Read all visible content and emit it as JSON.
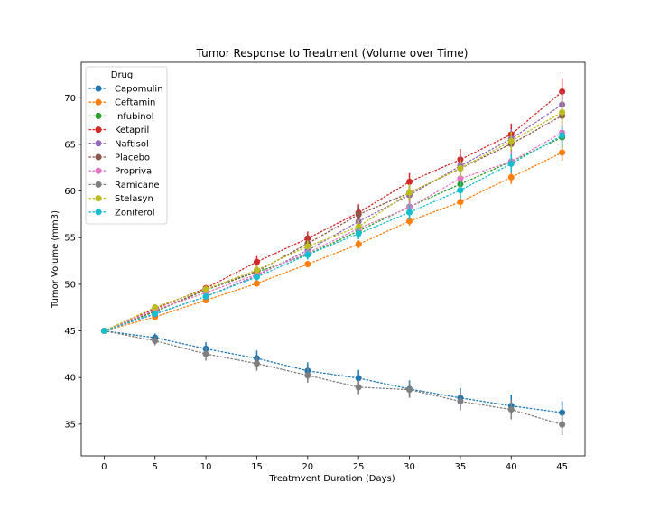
{
  "chart_data": {
    "type": "line",
    "title": "Tumor Response to Treatment (Volume over Time)",
    "xlabel": "Treatmvent Duration (Days)",
    "ylabel": "Tumor Volume (mm3)",
    "xlim": [
      -2.25,
      47.25
    ],
    "ylim": [
      31.6,
      73.8
    ],
    "xticks": [
      0,
      5,
      10,
      15,
      20,
      25,
      30,
      35,
      40,
      45
    ],
    "yticks": [
      35,
      40,
      45,
      50,
      55,
      60,
      65,
      70
    ],
    "grid": false,
    "legend": {
      "title": "Drug",
      "placement": "top-left"
    },
    "line_style": "dotted",
    "x": [
      0,
      5,
      10,
      15,
      20,
      25,
      30,
      35,
      40,
      45
    ],
    "series": [
      {
        "name": "Capomulin",
        "color": "#1f77b4",
        "values": [
          45.0,
          44.27,
          43.08,
          42.06,
          40.72,
          39.94,
          38.77,
          37.82,
          36.96,
          36.24
        ],
        "errors": [
          0,
          0.45,
          0.7,
          0.84,
          0.91,
          0.88,
          0.93,
          1.05,
          1.22,
          1.22
        ]
      },
      {
        "name": "Ceftamin",
        "color": "#ff7f0e",
        "values": [
          45.0,
          46.5,
          48.29,
          50.09,
          52.16,
          54.29,
          56.77,
          58.83,
          61.47,
          64.13
        ],
        "errors": [
          0,
          0.16,
          0.24,
          0.33,
          0.36,
          0.44,
          0.49,
          0.69,
          0.71,
          0.88
        ]
      },
      {
        "name": "Infubinol",
        "color": "#2ca02c",
        "values": [
          45.0,
          47.06,
          49.4,
          51.3,
          53.2,
          55.72,
          58.3,
          60.74,
          63.16,
          65.76
        ],
        "errors": [
          0,
          0.24,
          0.28,
          0.36,
          0.48,
          0.55,
          0.63,
          0.98,
          1.06,
          1.14
        ]
      },
      {
        "name": "Ketapril",
        "color": "#d62728",
        "values": [
          45.0,
          47.39,
          49.58,
          52.4,
          54.92,
          57.68,
          60.99,
          63.37,
          66.07,
          70.66
        ],
        "errors": [
          0,
          0.26,
          0.36,
          0.62,
          0.74,
          0.9,
          0.94,
          1.13,
          1.16,
          1.45
        ]
      },
      {
        "name": "Naftisol",
        "color": "#9467bd",
        "values": [
          45.0,
          46.8,
          48.69,
          50.93,
          53.64,
          56.73,
          59.56,
          62.69,
          65.6,
          69.27
        ],
        "errors": [
          0,
          0.2,
          0.36,
          0.49,
          0.69,
          0.81,
          0.98,
          1.01,
          1.07,
          1.42
        ]
      },
      {
        "name": "Placebo",
        "color": "#8c564b",
        "values": [
          45.0,
          47.13,
          49.42,
          51.36,
          54.36,
          57.48,
          59.81,
          62.42,
          65.05,
          68.08
        ],
        "errors": [
          0,
          0.22,
          0.4,
          0.61,
          0.84,
          0.88,
          0.93,
          1.1,
          1.16,
          1.35
        ]
      },
      {
        "name": "Propriva",
        "color": "#e377c2",
        "values": [
          45.0,
          47.25,
          49.1,
          51.07,
          53.35,
          55.99,
          58.24,
          61.34,
          63.15,
          66.26
        ],
        "errors": [
          0,
          0.23,
          0.38,
          0.47,
          0.55,
          0.6,
          0.78,
          0.99,
          1.14,
          1.12
        ]
      },
      {
        "name": "Ramicane",
        "color": "#7f7f7f",
        "values": [
          45.0,
          43.94,
          42.53,
          41.5,
          40.24,
          38.97,
          38.7,
          37.45,
          36.57,
          34.96
        ],
        "errors": [
          0,
          0.48,
          0.72,
          0.77,
          0.79,
          0.75,
          0.86,
          0.97,
          1.05,
          1.14
        ]
      },
      {
        "name": "Stelasyn",
        "color": "#bcbd22",
        "values": [
          45.0,
          47.53,
          49.46,
          51.53,
          54.07,
          56.17,
          59.83,
          62.44,
          65.36,
          68.44
        ],
        "errors": [
          0,
          0.24,
          0.43,
          0.49,
          0.62,
          0.74,
          0.9,
          0.93,
          1.02,
          1.3
        ]
      },
      {
        "name": "Zoniferol",
        "color": "#17becf",
        "values": [
          45.0,
          46.85,
          48.69,
          50.78,
          53.17,
          55.43,
          57.71,
          60.09,
          62.92,
          65.96
        ],
        "errors": [
          0,
          0.19,
          0.26,
          0.36,
          0.53,
          0.6,
          0.8,
          0.88,
          1.0,
          1.0
        ]
      }
    ]
  }
}
